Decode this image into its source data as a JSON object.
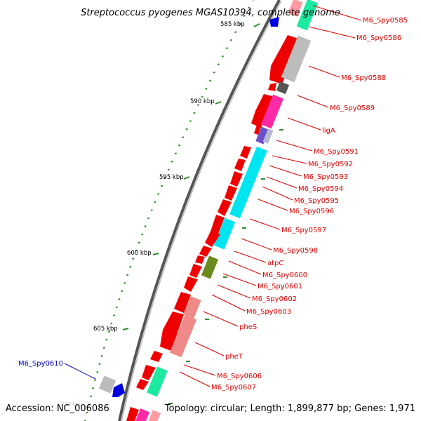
{
  "title": "Streptococcus pyogenes MGAS10394, complete genome",
  "footer": {
    "accession": "Accession: NC_006086",
    "topology": "Topology: circular; Length: 1,899,877 bp; Genes: 1,971"
  },
  "ruler": {
    "labels": [
      "585 kbp",
      "590 kbp",
      "595 kbp",
      "600 kbp",
      "605 kbp",
      "610 kbp"
    ]
  },
  "colors": {
    "forward_gene": "#ee0000",
    "label_red": "#dd0000",
    "label_blue": "#0000cc",
    "ruler_green": "#2a8a2a"
  },
  "gene_labels": [
    {
      "name": "M6_Spy0585",
      "color": "red"
    },
    {
      "name": "M6_Spy0586",
      "color": "red"
    },
    {
      "name": "M6_Spy0588",
      "color": "red"
    },
    {
      "name": "M6_Spy0589",
      "color": "red"
    },
    {
      "name": "ligA",
      "color": "red"
    },
    {
      "name": "M6_Spy0591",
      "color": "red"
    },
    {
      "name": "M6_Spy0592",
      "color": "red"
    },
    {
      "name": "M6_Spy0593",
      "color": "red"
    },
    {
      "name": "M6_Spy0594",
      "color": "red"
    },
    {
      "name": "M6_Spy0595",
      "color": "red"
    },
    {
      "name": "M6_Spy0596",
      "color": "red"
    },
    {
      "name": "M6_Spy0597",
      "color": "red"
    },
    {
      "name": "M6_Spy0598",
      "color": "red"
    },
    {
      "name": "atpC",
      "color": "red"
    },
    {
      "name": "M6_Spy0600",
      "color": "red"
    },
    {
      "name": "M6_Spy0601",
      "color": "red"
    },
    {
      "name": "M6_Spy0602",
      "color": "red"
    },
    {
      "name": "M6_Spy0603",
      "color": "red"
    },
    {
      "name": "pheS",
      "color": "red"
    },
    {
      "name": "pheT",
      "color": "red"
    },
    {
      "name": "M6_Spy0606",
      "color": "red"
    },
    {
      "name": "M6_Spy0607",
      "color": "red"
    },
    {
      "name": "M6_Spy0610",
      "color": "blue"
    }
  ]
}
